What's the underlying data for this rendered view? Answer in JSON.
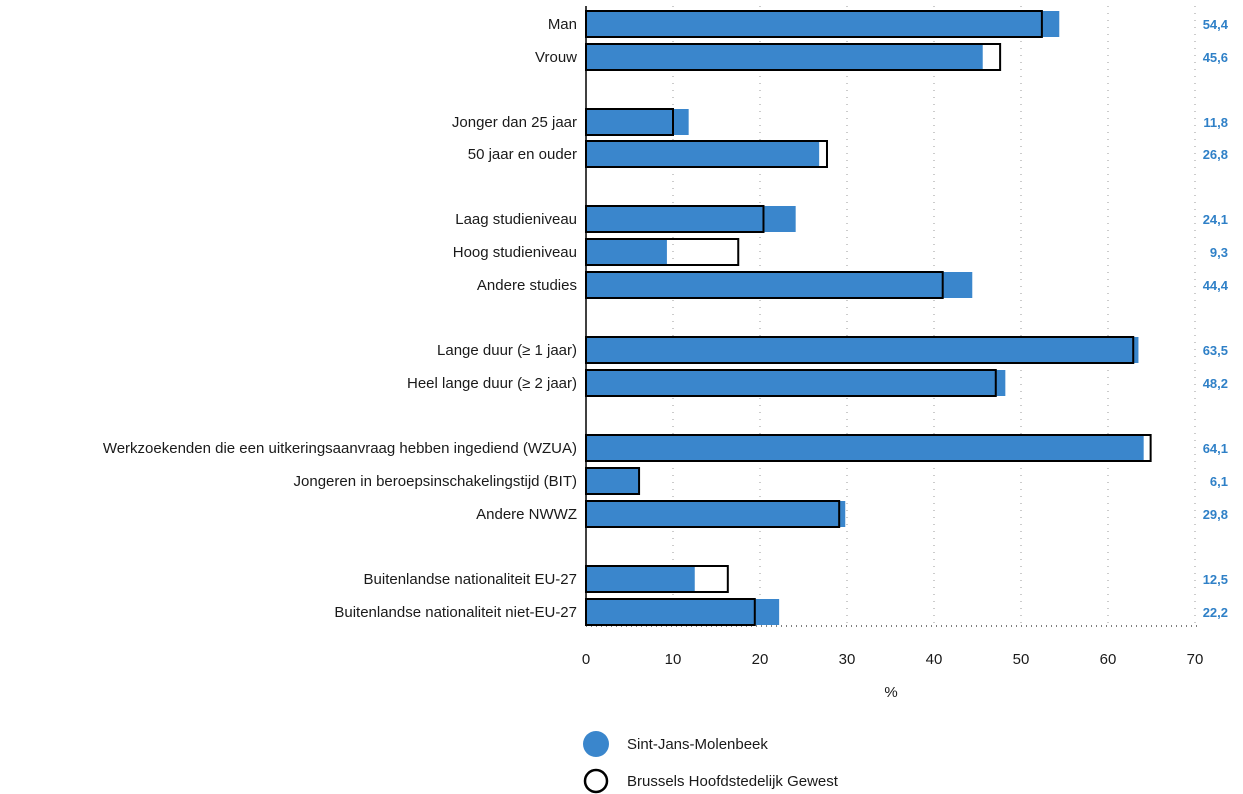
{
  "colors": {
    "primary": "#3a86cc",
    "value_text": "#2f80c7",
    "outline": "#000000",
    "grid": "#9a9a9a"
  },
  "chart_data": {
    "type": "bar",
    "orientation": "horizontal",
    "xlabel": "%",
    "xlim": [
      0,
      70
    ],
    "xticks": [
      0,
      10,
      20,
      30,
      40,
      50,
      60,
      70
    ],
    "grid": "vertical dotted",
    "legend_position": "bottom",
    "categories": [
      "Man",
      "Vrouw",
      "Jonger dan 25 jaar",
      "50 jaar en ouder",
      "Laag studieniveau",
      "Hoog studieniveau",
      "Andere studies",
      "Lange duur (≥ 1 jaar)",
      "Heel lange duur (≥ 2 jaar)",
      "Werkzoekenden die een uitkeringsaanvraag hebben ingediend (WZUA)",
      "Jongeren in beroepsinschakelingstijd (BIT)",
      "Andere NWWZ",
      "Buitenlandse nationaliteit EU-27",
      "Buitenlandse nationaliteit niet-EU-27"
    ],
    "groups": [
      2,
      2,
      3,
      2,
      3,
      2
    ],
    "value_labels": [
      "54,4",
      "45,6",
      "11,8",
      "26,8",
      "24,1",
      "9,3",
      "44,4",
      "63,5",
      "48,2",
      "64,1",
      "6,1",
      "29,8",
      "12,5",
      "22,2"
    ],
    "series": [
      {
        "name": "Sint-Jans-Molenbeek",
        "style": "filled",
        "values": [
          54.4,
          45.6,
          11.8,
          26.8,
          24.1,
          9.3,
          44.4,
          63.5,
          48.2,
          64.1,
          6.1,
          29.8,
          12.5,
          22.2
        ]
      },
      {
        "name": "Brussels Hoofdstedelijk Gewest",
        "style": "outline",
        "values": [
          52.4,
          47.6,
          10.0,
          27.7,
          20.4,
          17.5,
          41.0,
          62.9,
          47.1,
          64.9,
          6.1,
          29.1,
          16.3,
          19.4
        ]
      }
    ]
  }
}
